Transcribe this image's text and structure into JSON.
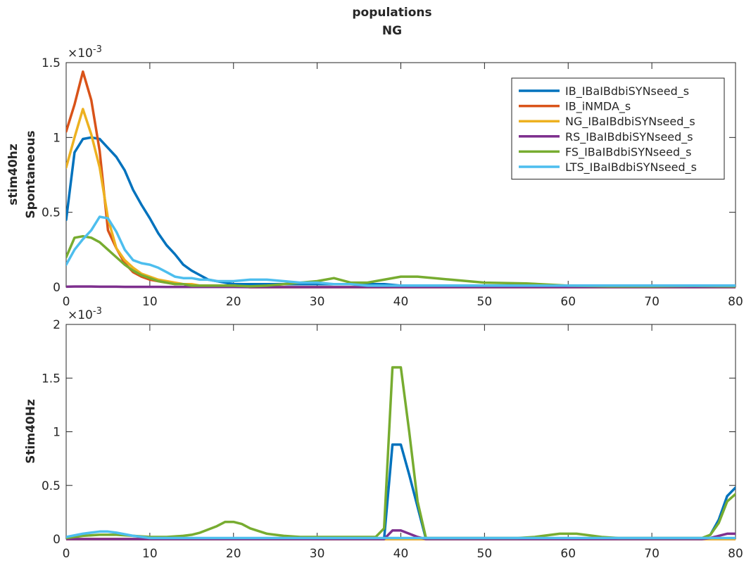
{
  "figure": {
    "title_line1": "populations",
    "title_line2": "NG"
  },
  "chart_data": [
    {
      "type": "line",
      "title": "populations NG",
      "ylabel_line1": "stim40hz",
      "ylabel_line2": "Spontaneous",
      "xlim": [
        0,
        80
      ],
      "ylim": [
        0,
        0.0015
      ],
      "xticks": [
        "0",
        "10",
        "20",
        "30",
        "40",
        "50",
        "60",
        "70",
        "80"
      ],
      "yticks": [
        "0",
        "0.5",
        "1",
        "1.5"
      ],
      "ytick_values": [
        0,
        0.0005,
        0.001,
        0.0015
      ],
      "exponent_label": "×10",
      "exponent_power": "-3",
      "grid": false,
      "legend": "top-right",
      "x": [
        0,
        1,
        2,
        3,
        4,
        5,
        6,
        7,
        8,
        9,
        10,
        11,
        12,
        13,
        14,
        15,
        16,
        17,
        18,
        19,
        20,
        22,
        24,
        26,
        28,
        30,
        32,
        34,
        36,
        38,
        40,
        42,
        44,
        46,
        48,
        50,
        55,
        60,
        65,
        70,
        75,
        80
      ],
      "series": [
        {
          "name": "IB_IBaIBdbiSYNseed_s",
          "color": "#0072BD",
          "values": [
            0.00045,
            0.0009,
            0.00099,
            0.001,
            0.00099,
            0.00093,
            0.00087,
            0.00078,
            0.00065,
            0.00055,
            0.00046,
            0.00036,
            0.00028,
            0.00022,
            0.00015,
            0.00011,
            8e-05,
            5e-05,
            4e-05,
            3e-05,
            2e-05,
            2e-05,
            2e-05,
            2e-05,
            2e-05,
            2e-05,
            2e-05,
            2e-05,
            2e-05,
            2e-05,
            1e-05,
            1e-05,
            1e-05,
            1e-05,
            1e-05,
            1e-05,
            1e-05,
            1e-05,
            1e-05,
            1e-05,
            1e-05,
            1e-05
          ]
        },
        {
          "name": "IB_iNMDA_s",
          "color": "#D95319",
          "values": [
            0.00104,
            0.00122,
            0.00144,
            0.00125,
            0.00091,
            0.00038,
            0.00026,
            0.00016,
            0.0001,
            7e-05,
            5e-05,
            4e-05,
            3e-05,
            2e-05,
            2e-05,
            1e-05,
            1e-05,
            1e-05,
            1e-05,
            1e-05,
            1e-05,
            0,
            0,
            0,
            0,
            0,
            0,
            0,
            0,
            0,
            0,
            0,
            0,
            0,
            0,
            0,
            0,
            0,
            0,
            0,
            0,
            0
          ]
        },
        {
          "name": "NG_IBaIBdbiSYNseed_s",
          "color": "#EDB120",
          "values": [
            0.0008,
            0.001,
            0.00119,
            0.00102,
            0.0008,
            0.00046,
            0.00026,
            0.00018,
            0.00013,
            9e-05,
            7e-05,
            5e-05,
            4e-05,
            3e-05,
            2e-05,
            2e-05,
            1e-05,
            1e-05,
            1e-05,
            1e-05,
            1e-05,
            0,
            0,
            0,
            0,
            0,
            0,
            0,
            0,
            0,
            0,
            0,
            0,
            0,
            0,
            0,
            0,
            0,
            0,
            0,
            0,
            0
          ]
        },
        {
          "name": "RS_IBaIBdbiSYNseed_s",
          "color": "#7E2F8E",
          "values": [
            3e-06,
            4e-06,
            4e-06,
            4e-06,
            3e-06,
            3e-06,
            3e-06,
            2e-06,
            2e-06,
            2e-06,
            2e-06,
            2e-06,
            1e-06,
            1e-06,
            1e-06,
            1e-06,
            1e-06,
            1e-06,
            1e-06,
            1e-06,
            1e-06,
            0,
            0,
            0,
            0,
            0,
            0,
            0,
            0,
            0,
            0,
            0,
            0,
            0,
            0,
            0,
            0,
            0,
            0,
            0,
            0,
            0
          ]
        },
        {
          "name": "FS_IBaIBdbiSYNseed_s",
          "color": "#77AC30",
          "values": [
            0.0002,
            0.00033,
            0.00034,
            0.00033,
            0.0003,
            0.00025,
            0.0002,
            0.00015,
            0.00011,
            8e-05,
            6e-05,
            4e-05,
            3e-05,
            2e-05,
            2e-05,
            1e-05,
            1e-05,
            1e-05,
            1e-05,
            1e-05,
            1e-05,
            5e-06,
            1e-05,
            2e-05,
            3e-05,
            4e-05,
            6e-05,
            3e-05,
            3e-05,
            5e-05,
            7e-05,
            7e-05,
            6e-05,
            5e-05,
            4e-05,
            3e-05,
            2.5e-05,
            1e-05,
            5e-06,
            5e-06,
            8e-06,
            5e-06
          ]
        },
        {
          "name": "LTS_IBaIBdbiSYNseed_s",
          "color": "#4DBEEE",
          "values": [
            0.00015,
            0.00025,
            0.00032,
            0.00038,
            0.00047,
            0.00046,
            0.00037,
            0.00025,
            0.00018,
            0.00016,
            0.00015,
            0.00013,
            0.0001,
            7e-05,
            6e-05,
            6e-05,
            5e-05,
            5e-05,
            4e-05,
            4e-05,
            4e-05,
            5e-05,
            5e-05,
            4e-05,
            3e-05,
            3e-05,
            2e-05,
            2e-05,
            1e-05,
            1e-05,
            1e-05,
            1e-05,
            1e-05,
            1e-05,
            1e-05,
            1e-05,
            1e-05,
            1e-05,
            1e-05,
            1e-05,
            1e-05,
            1e-05
          ]
        }
      ]
    },
    {
      "type": "line",
      "ylabel_line1": "",
      "ylabel_line2": "Stim40Hz",
      "xlim": [
        0,
        80
      ],
      "ylim": [
        0,
        0.002
      ],
      "xticks": [
        "0",
        "10",
        "20",
        "30",
        "40",
        "50",
        "60",
        "70",
        "80"
      ],
      "yticks": [
        "0",
        "0.5",
        "1",
        "1.5",
        "2"
      ],
      "ytick_values": [
        0,
        0.0005,
        0.001,
        0.0015,
        0.002
      ],
      "exponent_label": "×10",
      "exponent_power": "-3",
      "grid": false,
      "x": [
        0,
        2,
        4,
        5,
        6,
        8,
        10,
        12,
        14,
        15,
        16,
        18,
        19,
        20,
        21,
        22,
        24,
        26,
        28,
        30,
        32,
        34,
        36,
        37,
        38,
        39,
        40,
        41,
        42,
        43,
        44,
        46,
        48,
        50,
        52,
        54,
        56,
        58,
        59,
        60,
        61,
        62,
        64,
        66,
        68,
        70,
        72,
        74,
        76,
        77,
        78,
        79,
        80
      ],
      "series": [
        {
          "name": "IB_IBaIBdbiSYNseed_s",
          "color": "#0072BD",
          "values": [
            0,
            0,
            0,
            0,
            0,
            0,
            0,
            0,
            0,
            0,
            0,
            0,
            0,
            0,
            0,
            0,
            0,
            0,
            0,
            0,
            0,
            0,
            0,
            0,
            0,
            0.00088,
            0.00088,
            0.0006,
            0.0003,
            0,
            0,
            0,
            0,
            0,
            0,
            0,
            0,
            0,
            0,
            0,
            0,
            0,
            0,
            0,
            0,
            0,
            0,
            0,
            0,
            4e-05,
            0.00018,
            0.0004,
            0.00048
          ]
        },
        {
          "name": "IB_iNMDA_s",
          "color": "#D95319",
          "values": [
            0,
            0,
            0,
            0,
            0,
            0,
            0,
            0,
            0,
            0,
            0,
            0,
            0,
            0,
            0,
            0,
            0,
            0,
            0,
            0,
            0,
            0,
            0,
            0,
            0,
            0,
            0,
            0,
            0,
            0,
            0,
            0,
            0,
            0,
            0,
            0,
            0,
            0,
            0,
            0,
            0,
            0,
            0,
            0,
            0,
            0,
            0,
            0,
            0,
            0,
            0,
            0,
            0
          ]
        },
        {
          "name": "NG_IBaIBdbiSYNseed_s",
          "color": "#EDB120",
          "values": [
            0,
            0,
            0,
            0,
            0,
            0,
            0,
            0,
            0,
            0,
            0,
            0,
            0,
            0,
            0,
            0,
            0,
            0,
            0,
            0,
            0,
            0,
            0,
            0,
            0,
            0,
            0,
            0,
            0,
            0,
            0,
            0,
            0,
            0,
            0,
            0,
            0,
            0,
            0,
            0,
            0,
            0,
            0,
            0,
            0,
            0,
            0,
            0,
            0,
            0,
            0,
            0,
            0
          ]
        },
        {
          "name": "RS_IBaIBdbiSYNseed_s",
          "color": "#7E2F8E",
          "values": [
            0,
            0,
            0,
            0,
            0,
            0,
            0,
            0,
            0,
            0,
            0,
            0,
            0,
            0,
            0,
            0,
            0,
            0,
            0,
            0,
            0,
            0,
            0,
            0,
            0,
            8e-05,
            8e-05,
            5e-05,
            2e-05,
            0,
            0,
            0,
            0,
            0,
            0,
            0,
            0,
            0,
            0,
            0,
            0,
            0,
            0,
            0,
            0,
            0,
            0,
            0,
            0,
            1e-05,
            3e-05,
            5e-05,
            5e-05
          ]
        },
        {
          "name": "FS_IBaIBdbiSYNseed_s",
          "color": "#77AC30",
          "values": [
            1e-05,
            3e-05,
            4e-05,
            4e-05,
            4e-05,
            3e-05,
            2e-05,
            2e-05,
            3e-05,
            4e-05,
            6e-05,
            0.00012,
            0.00016,
            0.00016,
            0.00014,
            0.0001,
            5e-05,
            3e-05,
            2e-05,
            2e-05,
            2e-05,
            2e-05,
            2e-05,
            2e-05,
            0.0001,
            0.0016,
            0.0016,
            0.001,
            0.00035,
            1e-05,
            1e-05,
            1e-05,
            1e-05,
            1e-05,
            1e-05,
            1e-05,
            2e-05,
            4e-05,
            5e-05,
            5e-05,
            5e-05,
            4e-05,
            2e-05,
            1e-05,
            1e-05,
            1e-05,
            1e-05,
            1e-05,
            1e-05,
            4e-05,
            0.00015,
            0.00035,
            0.00042
          ]
        },
        {
          "name": "LTS_IBaIBdbiSYNseed_s",
          "color": "#4DBEEE",
          "values": [
            2e-05,
            5e-05,
            7e-05,
            7e-05,
            6e-05,
            3e-05,
            1e-05,
            1e-05,
            1e-05,
            1e-05,
            1e-05,
            1e-05,
            1e-05,
            1e-05,
            1e-05,
            1e-05,
            1e-05,
            1e-05,
            1e-05,
            1e-05,
            1e-05,
            1e-05,
            1e-05,
            1e-05,
            1e-05,
            1e-05,
            1e-05,
            1e-05,
            1e-05,
            1e-05,
            1e-05,
            1e-05,
            1e-05,
            1e-05,
            1e-05,
            1e-05,
            1e-05,
            1e-05,
            1e-05,
            1e-05,
            1e-05,
            1e-05,
            1e-05,
            1e-05,
            1e-05,
            1e-05,
            1e-05,
            1e-05,
            1e-05,
            1e-05,
            1e-05,
            1e-05,
            1e-05
          ]
        }
      ]
    }
  ]
}
